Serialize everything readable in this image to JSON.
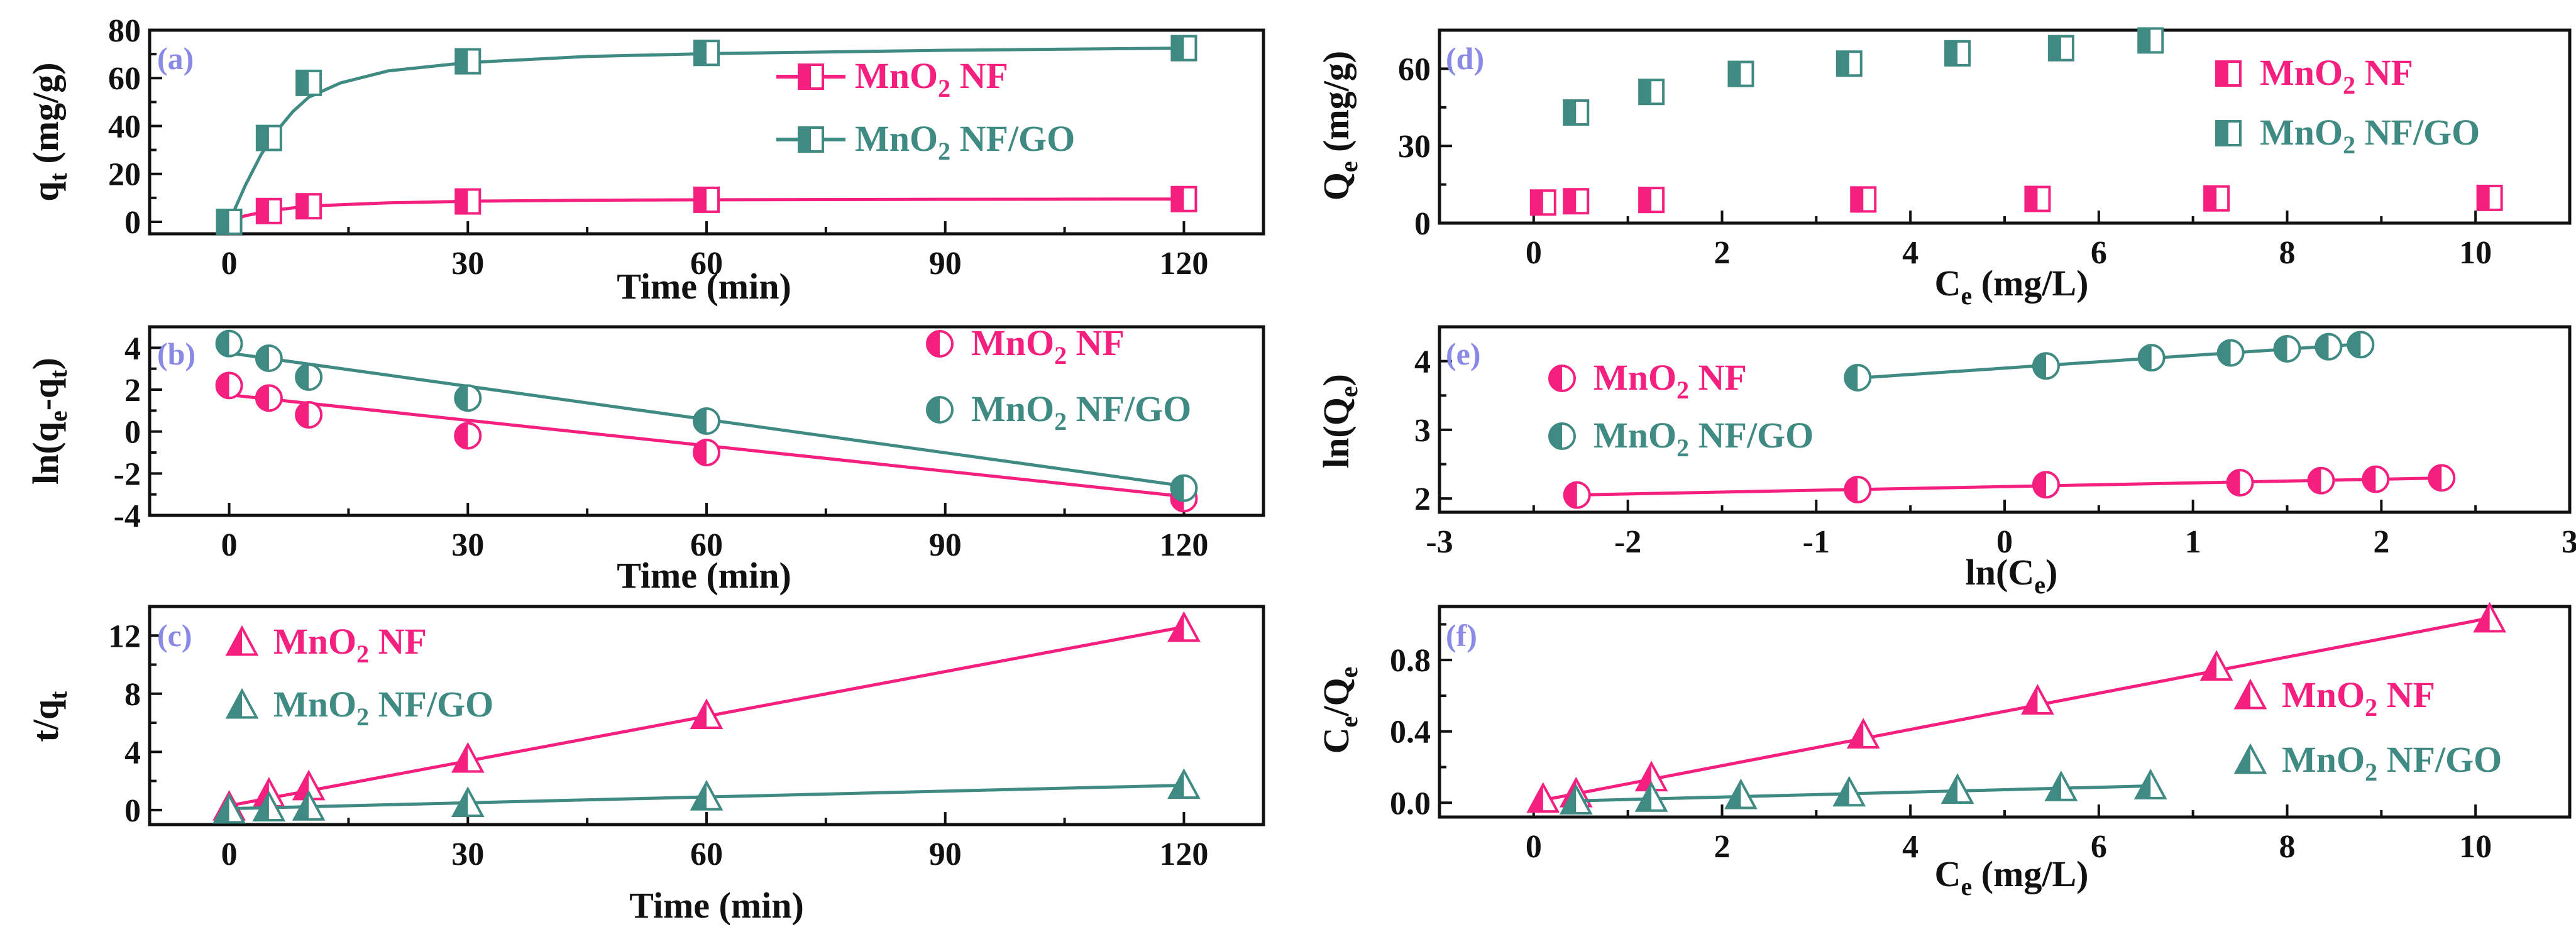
{
  "colors": {
    "series1": "#f51f80",
    "series2": "#3f8a82",
    "panel_letter": "#8a8ae6",
    "axis": "#111111"
  },
  "chart_data": [
    {
      "id": "a",
      "type": "line",
      "panel_label": "(a)",
      "xlabel": "Time (min)",
      "ylabel": {
        "base": "q",
        "sub": "t",
        "tail": " (mg/g)"
      },
      "xlim": [
        -10,
        130
      ],
      "ylim": [
        -5,
        80
      ],
      "xticks": [
        0,
        30,
        60,
        90,
        120
      ],
      "yticks": [
        0,
        20,
        40,
        60,
        80
      ],
      "legend_position": "top-right",
      "legend_style": "line-marker",
      "series": [
        {
          "name": {
            "pre": "MnO",
            "sub": "2",
            "post": " NF"
          },
          "marker": "half-square",
          "color": "#f51f80",
          "x": [
            5,
            10,
            30,
            60,
            120
          ],
          "y": [
            4.5,
            6.5,
            8.5,
            9.2,
            9.5
          ],
          "fit": [
            [
              0,
              0
            ],
            [
              2,
              2.5
            ],
            [
              5,
              4.6
            ],
            [
              10,
              6.6
            ],
            [
              20,
              7.9
            ],
            [
              30,
              8.6
            ],
            [
              45,
              9.0
            ],
            [
              60,
              9.2
            ],
            [
              90,
              9.4
            ],
            [
              120,
              9.5
            ]
          ]
        },
        {
          "name": {
            "pre": "MnO",
            "sub": "2",
            "post": " NF/GO"
          },
          "marker": "half-square",
          "color": "#3f8a82",
          "x": [
            0,
            5,
            10,
            30,
            60,
            120
          ],
          "y": [
            0,
            35,
            58,
            67,
            70.5,
            72.5
          ],
          "fit": [
            [
              0,
              0
            ],
            [
              2,
              15
            ],
            [
              4,
              28
            ],
            [
              6,
              38
            ],
            [
              8,
              46
            ],
            [
              10,
              52
            ],
            [
              14,
              58
            ],
            [
              20,
              63
            ],
            [
              30,
              66.5
            ],
            [
              45,
              69
            ],
            [
              60,
              70.2
            ],
            [
              90,
              71.6
            ],
            [
              120,
              72.5
            ]
          ]
        }
      ]
    },
    {
      "id": "b",
      "type": "scatter",
      "panel_label": "(b)",
      "xlabel": "Time (min)",
      "ylabel": {
        "base": "ln(q",
        "sub": "e",
        "tail": "-q",
        "sub2": "t",
        "tail2": ")"
      },
      "xlim": [
        -10,
        130
      ],
      "ylim": [
        -4,
        5
      ],
      "xticks": [
        0,
        30,
        60,
        90,
        120
      ],
      "yticks": [
        -4,
        -2,
        0,
        2,
        4
      ],
      "legend_position": "top-right",
      "legend_style": "marker",
      "series": [
        {
          "name": {
            "pre": "MnO",
            "sub": "2",
            "post": " NF"
          },
          "marker": "half-circle",
          "color": "#f51f80",
          "x": [
            0,
            5,
            10,
            30,
            60,
            120
          ],
          "y": [
            2.2,
            1.6,
            0.8,
            -0.2,
            -1.0,
            -3.2
          ],
          "fit": [
            [
              0,
              1.75
            ],
            [
              120,
              -3.1
            ]
          ]
        },
        {
          "name": {
            "pre": "MnO",
            "sub": "2",
            "post": " NF/GO"
          },
          "marker": "half-circle",
          "color": "#3f8a82",
          "x": [
            0,
            5,
            10,
            30,
            60,
            120
          ],
          "y": [
            4.2,
            3.5,
            2.6,
            1.6,
            0.5,
            -2.7
          ],
          "fit": [
            [
              0,
              3.75
            ],
            [
              120,
              -2.6
            ]
          ]
        }
      ]
    },
    {
      "id": "c",
      "type": "scatter",
      "panel_label": "(c)",
      "xlabel": "Time (min)",
      "ylabel": {
        "base": "t/q",
        "sub": "t",
        "tail": ""
      },
      "xlim": [
        -10,
        130
      ],
      "ylim": [
        -1,
        14
      ],
      "xticks": [
        0,
        30,
        60,
        90,
        120
      ],
      "yticks": [
        0,
        4,
        8,
        12
      ],
      "legend_position": "top-left",
      "legend_style": "marker",
      "series": [
        {
          "name": {
            "pre": "MnO",
            "sub": "2",
            "post": " NF"
          },
          "marker": "half-triangle",
          "color": "#f51f80",
          "x": [
            0,
            5,
            10,
            30,
            60,
            120
          ],
          "y": [
            0.2,
            1.1,
            1.6,
            3.5,
            6.5,
            12.5
          ],
          "fit": [
            [
              0,
              0.3
            ],
            [
              120,
              12.6
            ]
          ]
        },
        {
          "name": {
            "pre": "MnO",
            "sub": "2",
            "post": " NF/GO"
          },
          "marker": "half-triangle",
          "color": "#3f8a82",
          "x": [
            0,
            5,
            10,
            30,
            60,
            120
          ],
          "y": [
            0,
            0.15,
            0.2,
            0.45,
            0.9,
            1.7
          ],
          "fit": [
            [
              0,
              0.1
            ],
            [
              120,
              1.7
            ]
          ]
        }
      ]
    },
    {
      "id": "d",
      "type": "scatter",
      "panel_label": "(d)",
      "xlabel": {
        "base": "C",
        "sub": "e",
        "tail": " (mg/L)"
      },
      "ylabel": {
        "base": "Q",
        "sub": "e",
        "tail": " (mg/g)"
      },
      "xlim": [
        -1,
        11
      ],
      "ylim": [
        0,
        75
      ],
      "xticks": [
        0,
        2,
        4,
        6,
        8,
        10
      ],
      "yticks": [
        0,
        30,
        60
      ],
      "legend_position": "top-right",
      "legend_style": "marker",
      "series": [
        {
          "name": {
            "pre": "MnO",
            "sub": "2",
            "post": " NF"
          },
          "marker": "half-square",
          "color": "#f51f80",
          "x": [
            0.1,
            0.45,
            1.25,
            3.5,
            5.35,
            7.25,
            10.15
          ],
          "y": [
            8,
            8.5,
            9,
            9.2,
            9.4,
            9.6,
            9.8
          ]
        },
        {
          "name": {
            "pre": "MnO",
            "sub": "2",
            "post": " NF/GO"
          },
          "marker": "half-square",
          "color": "#3f8a82",
          "x": [
            0.45,
            1.25,
            2.2,
            3.35,
            4.5,
            5.6,
            6.55
          ],
          "y": [
            43,
            51,
            58,
            62,
            66,
            68,
            71
          ]
        }
      ]
    },
    {
      "id": "e",
      "type": "scatter",
      "panel_label": "(e)",
      "xlabel": {
        "base": "ln(C",
        "sub": "e",
        "tail": ")"
      },
      "ylabel": {
        "base": "ln(Q",
        "sub": "e",
        "tail": ")"
      },
      "xlim": [
        -3,
        3
      ],
      "ylim": [
        1.8,
        4.5
      ],
      "xticks": [
        -3,
        -2,
        -1,
        0,
        1,
        2,
        3
      ],
      "yticks": [
        2,
        3,
        4
      ],
      "legend_position": "left",
      "legend_style": "marker",
      "series": [
        {
          "name": {
            "pre": "MnO",
            "sub": "2",
            "post": " NF"
          },
          "marker": "half-circle",
          "color": "#f51f80",
          "x": [
            -2.27,
            -0.78,
            0.22,
            1.25,
            1.68,
            1.97,
            2.32
          ],
          "y": [
            2.05,
            2.13,
            2.2,
            2.23,
            2.26,
            2.28,
            2.3
          ],
          "fit": [
            [
              -2.3,
              2.05
            ],
            [
              2.35,
              2.3
            ]
          ]
        },
        {
          "name": {
            "pre": "MnO",
            "sub": "2",
            "post": " NF/GO"
          },
          "marker": "half-circle",
          "color": "#3f8a82",
          "x": [
            -0.78,
            0.22,
            0.78,
            1.2,
            1.5,
            1.72,
            1.89
          ],
          "y": [
            3.76,
            3.93,
            4.05,
            4.12,
            4.18,
            4.21,
            4.24
          ],
          "fit": [
            [
              -0.8,
              3.75
            ],
            [
              1.9,
              4.25
            ]
          ]
        }
      ]
    },
    {
      "id": "f",
      "type": "scatter",
      "panel_label": "(f)",
      "xlabel": {
        "base": "C",
        "sub": "e",
        "tail": " (mg/L)"
      },
      "ylabel": {
        "base": "C",
        "sub": "e",
        "tail": "/Q",
        "sub2": "e",
        "tail2": ""
      },
      "xlim": [
        -1,
        11
      ],
      "ylim": [
        -0.08,
        1.1
      ],
      "xticks": [
        0,
        2,
        4,
        6,
        8,
        10
      ],
      "yticks": [
        0.0,
        0.4,
        0.8
      ],
      "ytick_labels": [
        "0.0",
        "0.4",
        "0.8"
      ],
      "legend_position": "right",
      "legend_style": "marker",
      "series": [
        {
          "name": {
            "pre": "MnO",
            "sub": "2",
            "post": " NF"
          },
          "marker": "half-triangle",
          "color": "#f51f80",
          "x": [
            0.1,
            0.45,
            1.25,
            3.5,
            5.35,
            7.25,
            10.15
          ],
          "y": [
            0.02,
            0.05,
            0.14,
            0.38,
            0.57,
            0.76,
            1.03
          ],
          "fit": [
            [
              0,
              0.005
            ],
            [
              10.2,
              1.04
            ]
          ]
        },
        {
          "name": {
            "pre": "MnO",
            "sub": "2",
            "post": " NF/GO"
          },
          "marker": "half-triangle",
          "color": "#3f8a82",
          "x": [
            0.45,
            1.25,
            2.2,
            3.35,
            4.5,
            5.6,
            6.55
          ],
          "y": [
            0.01,
            0.025,
            0.04,
            0.055,
            0.07,
            0.085,
            0.095
          ],
          "fit": [
            [
              0.4,
              0.01
            ],
            [
              6.6,
              0.095
            ]
          ]
        }
      ]
    }
  ]
}
